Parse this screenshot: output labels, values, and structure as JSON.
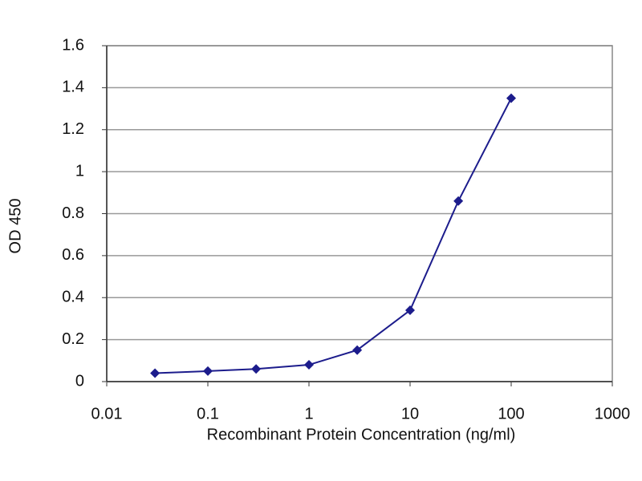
{
  "chart_data": {
    "type": "line",
    "x_label": "Recombinant Protein Concentration (ng/ml)",
    "y_label": "OD 450",
    "x": [
      0.03,
      0.1,
      0.3,
      1,
      3,
      10,
      30,
      100
    ],
    "values": [
      0.04,
      0.05,
      0.06,
      0.08,
      0.15,
      0.34,
      0.86,
      1.35
    ],
    "color": "#1c1c8c",
    "xscale": "log",
    "xlim": [
      0.01,
      1000
    ],
    "xticks": [
      0.01,
      0.1,
      1,
      10,
      100,
      1000
    ],
    "ylim": [
      0,
      1.6
    ],
    "yticks": [
      0,
      0.2,
      0.4,
      0.6,
      0.8,
      1,
      1.2,
      1.4,
      1.6
    ],
    "grid": true
  }
}
